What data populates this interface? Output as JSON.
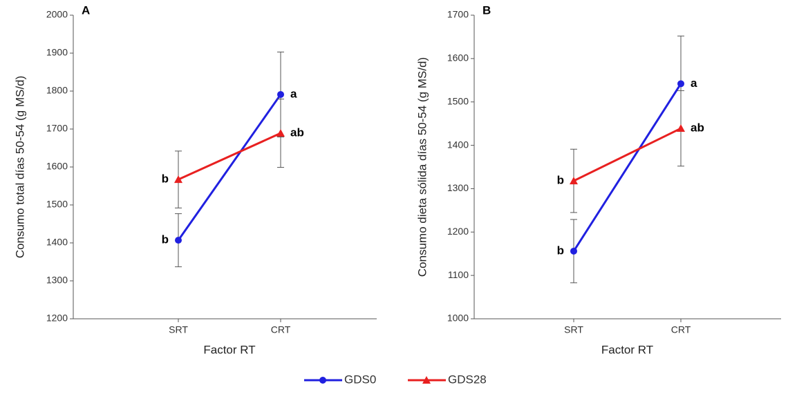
{
  "chart_data": [
    {
      "type": "line",
      "panel_label": "A",
      "y_label": "Consumo total días 50-54 (g MS/d)",
      "x_label": "Factor RT",
      "categories": [
        "SRT",
        "CRT"
      ],
      "ylim": [
        1200,
        2000
      ],
      "yticks": [
        1200,
        1300,
        1400,
        1500,
        1600,
        1700,
        1800,
        1900,
        2000
      ],
      "series": [
        {
          "name": "GDS0",
          "color": "#2020e0",
          "marker": "circle",
          "values": [
            1407,
            1791
          ],
          "errors": [
            70,
            112
          ],
          "point_labels": [
            "b",
            "a"
          ]
        },
        {
          "name": "GDS28",
          "color": "#e82020",
          "marker": "triangle",
          "values": [
            1567,
            1689
          ],
          "errors": [
            75,
            90
          ],
          "point_labels": [
            "b",
            "ab"
          ]
        }
      ]
    },
    {
      "type": "line",
      "panel_label": "B",
      "y_label": "Consumo dieta sólida días 50-54 (g MS/d)",
      "x_label": "Factor RT",
      "categories": [
        "SRT",
        "CRT"
      ],
      "ylim": [
        1000,
        1700
      ],
      "yticks": [
        1000,
        1100,
        1200,
        1300,
        1400,
        1500,
        1600,
        1700
      ],
      "series": [
        {
          "name": "GDS0",
          "color": "#2020e0",
          "marker": "circle",
          "values": [
            1156,
            1542
          ],
          "errors": [
            73,
            110
          ],
          "point_labels": [
            "b",
            "a"
          ]
        },
        {
          "name": "GDS28",
          "color": "#e82020",
          "marker": "triangle",
          "values": [
            1318,
            1439
          ],
          "errors": [
            73,
            87
          ],
          "point_labels": [
            "b",
            "ab"
          ]
        }
      ]
    }
  ]
}
